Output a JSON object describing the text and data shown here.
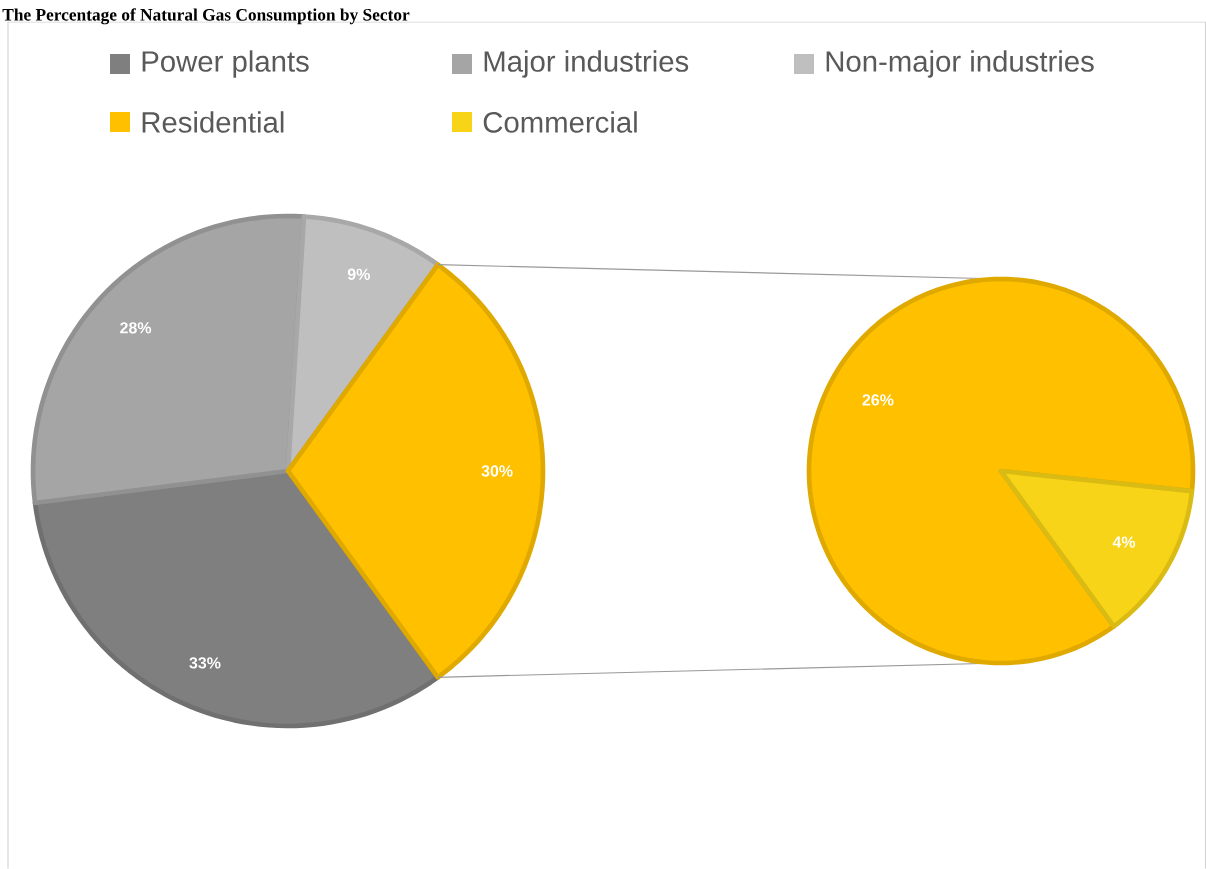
{
  "chart_data": [
    {
      "type": "pie",
      "title": "The Percentage of Natural Gas Consumption by Sector",
      "categories": [
        "Power plants",
        "Major industries",
        "Non-major industries",
        null
      ],
      "values": [
        33,
        28,
        9,
        30
      ],
      "colors": [
        "#7f7f7f",
        "#a5a5a5",
        "#bfbfbf",
        "#ffc000"
      ],
      "value_labels": [
        "33%",
        "28%",
        "9%",
        "30%"
      ],
      "legend": "top"
    },
    {
      "type": "pie",
      "categories": [
        "Residential",
        "Commercial"
      ],
      "values": [
        26,
        4
      ],
      "colors": [
        "#ffc000",
        "#f7d417"
      ],
      "value_labels": [
        "26%",
        "4%"
      ],
      "legend": "top"
    }
  ]
}
